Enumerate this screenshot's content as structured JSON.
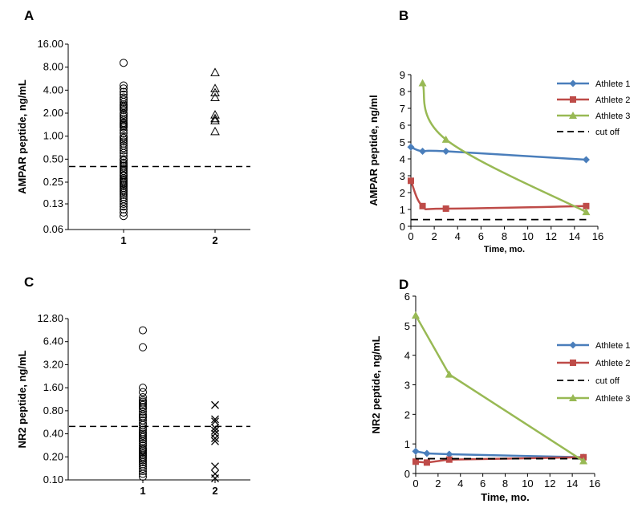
{
  "chart_data": [
    {
      "panel": "A",
      "type": "scatter",
      "ylabel": "AMPAR peptide, ng/mL",
      "xlabel": "",
      "yscale": "log2",
      "ylim": [
        0.06,
        16
      ],
      "yticks": [
        "0.06",
        "0.13",
        "0.25",
        "0.50",
        "1.00",
        "2.00",
        "4.00",
        "8.00",
        "16.00"
      ],
      "categories": [
        "1",
        "2"
      ],
      "cutoff": 0.4,
      "series": [
        {
          "marker": "circle",
          "category": "1",
          "values": [
            9.1,
            4.6,
            4.2,
            3.8,
            3.5,
            3.2,
            3.0,
            2.8,
            2.6,
            2.5,
            2.4,
            2.3,
            2.2,
            2.0,
            1.9,
            1.8,
            1.7,
            1.6,
            1.5,
            1.45,
            1.4,
            1.35,
            1.3,
            1.2,
            1.1,
            1.0,
            0.95,
            0.9,
            0.85,
            0.8,
            0.75,
            0.7,
            0.65,
            0.6,
            0.55,
            0.5,
            0.48,
            0.45,
            0.43,
            0.41,
            0.39,
            0.37,
            0.35,
            0.33,
            0.31,
            0.3,
            0.28,
            0.27,
            0.26,
            0.25,
            0.24,
            0.23,
            0.22,
            0.21,
            0.2,
            0.19,
            0.18,
            0.17,
            0.16,
            0.15,
            0.14,
            0.13,
            0.12,
            0.11,
            0.1,
            0.09
          ]
        },
        {
          "marker": "triangle",
          "category": "2",
          "values": [
            6.8,
            4.2,
            3.7,
            3.2,
            1.9,
            1.7,
            1.6,
            1.15
          ]
        }
      ]
    },
    {
      "panel": "B",
      "type": "line",
      "xlabel": "Time, mo.",
      "ylabel": "AMPAR peptide, ng/ml",
      "xlim": [
        0,
        16
      ],
      "ylim": [
        0,
        9
      ],
      "xticks": [
        0,
        2,
        4,
        6,
        8,
        10,
        12,
        14,
        16
      ],
      "yticks": [
        0,
        1,
        2,
        3,
        4,
        5,
        6,
        7,
        8,
        9
      ],
      "legend_position": "right",
      "series": [
        {
          "name": "Athlete 1",
          "color": "#4a7ebb",
          "marker": "diamond",
          "x": [
            0,
            1,
            3,
            15
          ],
          "y": [
            4.7,
            4.45,
            4.45,
            3.95
          ]
        },
        {
          "name": "Athlete 2",
          "color": "#be4b48",
          "marker": "square",
          "x": [
            0,
            1,
            3,
            15
          ],
          "y": [
            2.7,
            1.2,
            1.05,
            1.2
          ]
        },
        {
          "name": "Athlete 3",
          "color": "#98b954",
          "marker": "triangle",
          "x": [
            1,
            3,
            15
          ],
          "y": [
            8.5,
            5.15,
            0.85
          ]
        },
        {
          "name": "cut off",
          "color": "#000000",
          "dashed": true,
          "x": [
            0,
            15
          ],
          "y": [
            0.4,
            0.4
          ]
        }
      ]
    },
    {
      "panel": "C",
      "type": "scatter",
      "ylabel": "NR2 peptide, ng/mL",
      "xlabel": "",
      "yscale": "log2",
      "ylim": [
        0.1,
        12.8
      ],
      "yticks": [
        "0.10",
        "0.20",
        "0.40",
        "0.80",
        "1.60",
        "3.20",
        "6.40",
        "12.80"
      ],
      "categories": [
        "1",
        "2"
      ],
      "cutoff": 0.5,
      "series": [
        {
          "marker": "circle",
          "category": "1",
          "values": [
            9.0,
            5.4,
            1.6,
            1.4,
            1.2,
            1.1,
            1.05,
            1.0,
            0.95,
            0.9,
            0.85,
            0.78,
            0.72,
            0.68,
            0.65,
            0.6,
            0.55,
            0.52,
            0.48,
            0.45,
            0.42,
            0.4,
            0.38,
            0.36,
            0.34,
            0.32,
            0.3,
            0.28,
            0.26,
            0.25,
            0.24,
            0.23,
            0.22,
            0.21,
            0.2,
            0.19,
            0.18,
            0.17,
            0.16,
            0.15,
            0.14,
            0.13,
            0.12,
            0.11
          ]
        },
        {
          "marker": "x",
          "category": "2",
          "values": [
            0.95,
            0.62,
            0.58,
            0.48,
            0.44,
            0.4,
            0.35,
            0.32,
            0.15,
            0.12,
            0.105
          ]
        }
      ]
    },
    {
      "panel": "D",
      "type": "line",
      "xlabel": "Time, mo.",
      "ylabel": "NR2 peptide, ng/mL",
      "xlim": [
        0,
        16
      ],
      "ylim": [
        0,
        6
      ],
      "xticks": [
        0,
        2,
        4,
        6,
        8,
        10,
        12,
        14,
        16
      ],
      "yticks": [
        0,
        1,
        2,
        3,
        4,
        5,
        6
      ],
      "legend_position": "right",
      "series": [
        {
          "name": "Athlete 1",
          "color": "#4a7ebb",
          "marker": "diamond",
          "x": [
            0,
            1,
            3,
            15
          ],
          "y": [
            0.75,
            0.68,
            0.65,
            0.55
          ]
        },
        {
          "name": "Athlete 2",
          "color": "#be4b48",
          "marker": "square",
          "x": [
            0,
            1,
            3,
            15
          ],
          "y": [
            0.4,
            0.37,
            0.47,
            0.55
          ]
        },
        {
          "name": "cut off",
          "color": "#000000",
          "dashed": true,
          "x": [
            0,
            15
          ],
          "y": [
            0.5,
            0.5
          ]
        },
        {
          "name": "Athlete 3",
          "color": "#98b954",
          "marker": "triangle",
          "x": [
            0,
            3,
            15
          ],
          "y": [
            5.35,
            3.35,
            0.42
          ]
        }
      ]
    }
  ]
}
